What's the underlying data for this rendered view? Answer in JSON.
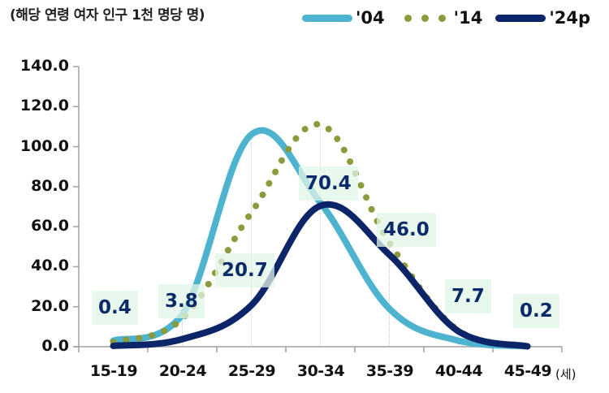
{
  "header": {
    "unit_title": "(해당 연령 여자 인구 1천 명당 명)"
  },
  "legend": [
    {
      "label": "'04",
      "style": "line",
      "color": "#4db3cf"
    },
    {
      "label": "'14",
      "style": "dots",
      "color": "#8b9b3c"
    },
    {
      "label": "'24p",
      "style": "line",
      "color": "#0c2468"
    }
  ],
  "x_unit_label": "(세)",
  "chart_data": {
    "type": "line",
    "title": "",
    "xlabel": "(세)",
    "ylabel": "(해당 연령 여자 인구 1천 명당 명)",
    "categories": [
      "15-19",
      "20-24",
      "25-29",
      "30-34",
      "35-39",
      "40-44",
      "45-49"
    ],
    "yticks": [
      "0.0",
      "20.0",
      "40.0",
      "60.0",
      "80.0",
      "100.0",
      "120.0",
      "140.0"
    ],
    "ylim": [
      0,
      140
    ],
    "grid": false,
    "legend_position": "top-right",
    "series": [
      {
        "name": "'04",
        "style": "solid",
        "color": "#4db3cf",
        "values": [
          3.0,
          16.0,
          106.0,
          72.0,
          19.0,
          3.0,
          0.2
        ]
      },
      {
        "name": "'14",
        "style": "dotted",
        "color": "#8b9b3c",
        "values": [
          2.4,
          14.0,
          67.0,
          111.0,
          52.0,
          8.0,
          0.3
        ]
      },
      {
        "name": "'24p",
        "style": "solid",
        "color": "#0c2468",
        "values": [
          0.4,
          3.8,
          20.7,
          70.4,
          46.0,
          7.7,
          0.2
        ]
      }
    ],
    "data_labels": {
      "series": "'24p",
      "values": [
        "0.4",
        "3.8",
        "20.7",
        "70.4",
        "46.0",
        "7.7",
        "0.2"
      ]
    }
  }
}
